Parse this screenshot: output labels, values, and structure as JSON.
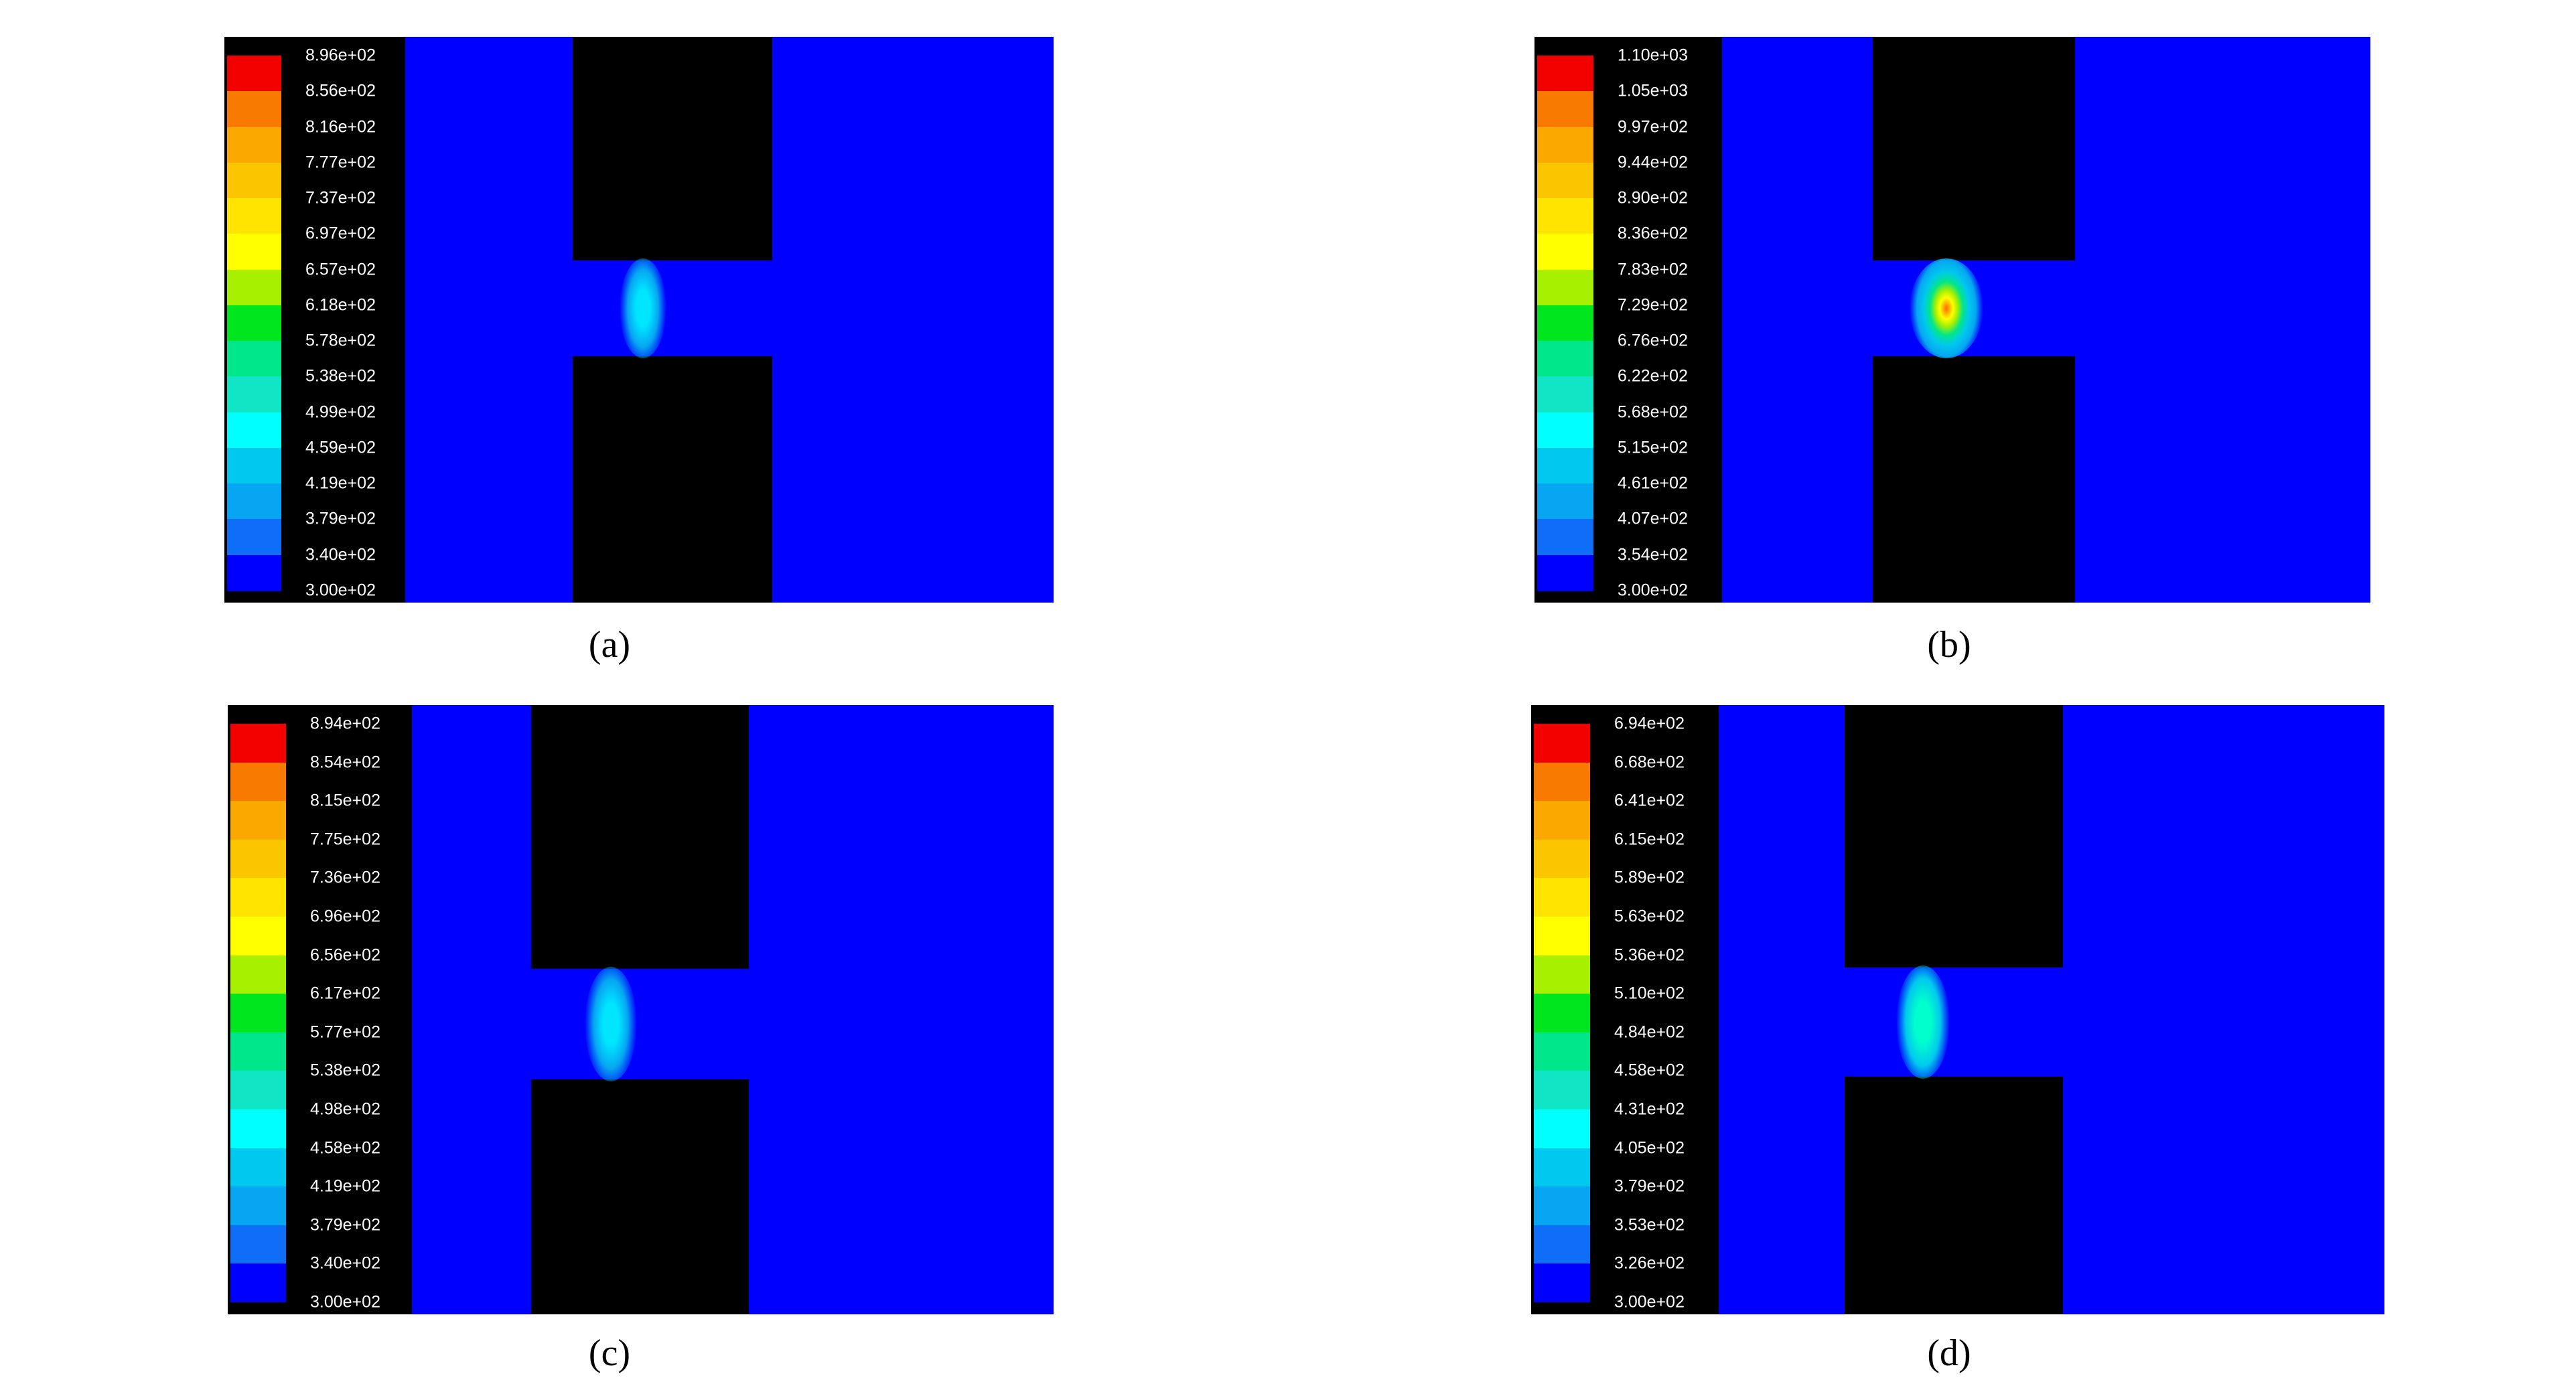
{
  "colormap": [
    "#0000ff",
    "#0f6ef8",
    "#06a6f2",
    "#00c8ee",
    "#00ffff",
    "#10e6c6",
    "#00e68a",
    "#00e61e",
    "#a6f000",
    "#ffff00",
    "#ffe400",
    "#fbc600",
    "#fba800",
    "#f97a00",
    "#f20000"
  ],
  "panels": [
    {
      "caption": "(a)",
      "ticks": [
        "8.96e+02",
        "8.56e+02",
        "8.16e+02",
        "7.77e+02",
        "7.37e+02",
        "6.97e+02",
        "6.57e+02",
        "6.18e+02",
        "5.78e+02",
        "5.38e+02",
        "4.99e+02",
        "4.59e+02",
        "4.19e+02",
        "3.79e+02",
        "3.40e+02",
        "3.00e+02"
      ],
      "plume": {
        "core": "#00e6ff",
        "edge": "#06a6f2",
        "hot": false
      }
    },
    {
      "caption": "(b)",
      "ticks": [
        "1.10e+03",
        "1.05e+03",
        "9.97e+02",
        "9.44e+02",
        "8.90e+02",
        "8.36e+02",
        "7.83e+02",
        "7.29e+02",
        "6.76e+02",
        "6.22e+02",
        "5.68e+02",
        "5.15e+02",
        "4.61e+02",
        "4.07e+02",
        "3.54e+02",
        "3.00e+02"
      ],
      "plume": {
        "core": "#ffff00",
        "edge": "#00c8ee",
        "hot": true
      }
    },
    {
      "caption": "(c)",
      "ticks": [
        "8.94e+02",
        "8.54e+02",
        "8.15e+02",
        "7.75e+02",
        "7.36e+02",
        "6.96e+02",
        "6.56e+02",
        "6.17e+02",
        "5.77e+02",
        "5.38e+02",
        "4.98e+02",
        "4.58e+02",
        "4.19e+02",
        "3.79e+02",
        "3.40e+02",
        "3.00e+02"
      ],
      "plume": {
        "core": "#00e6ff",
        "edge": "#06a6f2",
        "hot": false
      }
    },
    {
      "caption": "(d)",
      "ticks": [
        "6.94e+02",
        "6.68e+02",
        "6.41e+02",
        "6.15e+02",
        "5.89e+02",
        "5.63e+02",
        "5.36e+02",
        "5.10e+02",
        "4.84e+02",
        "4.58e+02",
        "4.31e+02",
        "4.05e+02",
        "3.79e+02",
        "3.53e+02",
        "3.26e+02",
        "3.00e+02"
      ],
      "plume": {
        "core": "#00ffcc",
        "edge": "#00c8ee",
        "hot": false
      }
    }
  ]
}
